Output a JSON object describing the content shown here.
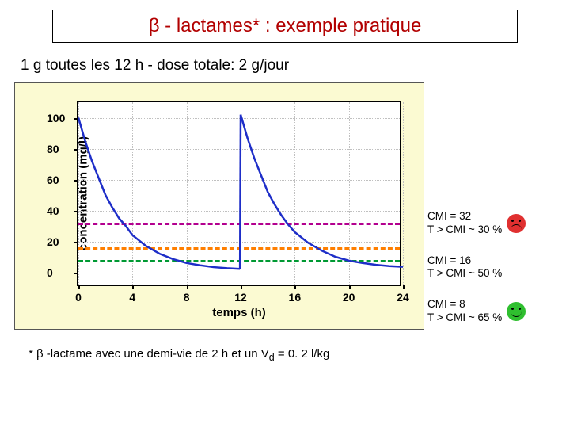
{
  "title": {
    "text_html": "β - lactames* : exemple pratique",
    "color": "#b20000",
    "fontsize": 24
  },
  "subtitle": "1 g  toutes les 12 h - dose  totale: 2 g/jour",
  "chart": {
    "type": "line",
    "background_color": "#fbfad2",
    "plot_bg": "#ffffff",
    "border_color": "#000000",
    "xlim": [
      0,
      24
    ],
    "ylim": [
      -10,
      110
    ],
    "xticks": [
      0,
      4,
      8,
      12,
      16,
      20,
      24
    ],
    "yticks": [
      0,
      20,
      40,
      60,
      80,
      100
    ],
    "grid_color": "#c0c0c0",
    "xlabel": "temps (h)",
    "ylabel": "concentration (mg/l)",
    "label_fontsize": 15,
    "tick_fontsize": 14,
    "curve": {
      "color": "#1e2ec8",
      "width": 2.5,
      "points": [
        [
          0,
          100
        ],
        [
          0.5,
          85
        ],
        [
          1,
          72
        ],
        [
          1.5,
          61
        ],
        [
          2,
          50
        ],
        [
          2.5,
          42
        ],
        [
          3,
          35
        ],
        [
          3.5,
          30
        ],
        [
          4,
          24
        ],
        [
          5,
          17
        ],
        [
          6,
          12
        ],
        [
          7,
          8.5
        ],
        [
          8,
          6
        ],
        [
          9,
          4.5
        ],
        [
          10,
          3.3
        ],
        [
          11,
          2.6
        ],
        [
          11.95,
          2.2
        ],
        [
          12,
          102
        ],
        [
          12.5,
          87
        ],
        [
          13,
          74
        ],
        [
          13.5,
          63
        ],
        [
          14,
          52
        ],
        [
          14.5,
          44
        ],
        [
          15,
          37
        ],
        [
          15.5,
          31
        ],
        [
          16,
          26
        ],
        [
          17,
          19
        ],
        [
          18,
          14
        ],
        [
          19,
          10
        ],
        [
          20,
          7.5
        ],
        [
          21,
          6
        ],
        [
          22,
          4.8
        ],
        [
          23,
          4
        ],
        [
          24,
          3.5
        ]
      ]
    },
    "ref_lines": [
      {
        "y": 32,
        "color": "#b3008f",
        "dash": "6,6",
        "width": 3
      },
      {
        "y": 16,
        "color": "#ff7f00",
        "dash": "6,6",
        "width": 3
      },
      {
        "y": 8,
        "color": "#009933",
        "dash": "6,6",
        "width": 3
      }
    ]
  },
  "legend": [
    {
      "line1": "CMI = 32",
      "line2": "T > CMI ~ 30 %",
      "face_color": "#e03030",
      "mood": "sad"
    },
    {
      "line1": "CMI = 16",
      "line2": "T > CMI ~ 50 %",
      "face_color": null,
      "mood": null
    },
    {
      "line1": "CMI = 8",
      "line2": "T > CMI ~ 65 %",
      "face_color": "#2fbf2f",
      "mood": "happy"
    }
  ],
  "footnote_html": "*  β -lactame avec une demi-vie de 2 h et un V<sub>d</sub> = 0. 2 l/kg"
}
